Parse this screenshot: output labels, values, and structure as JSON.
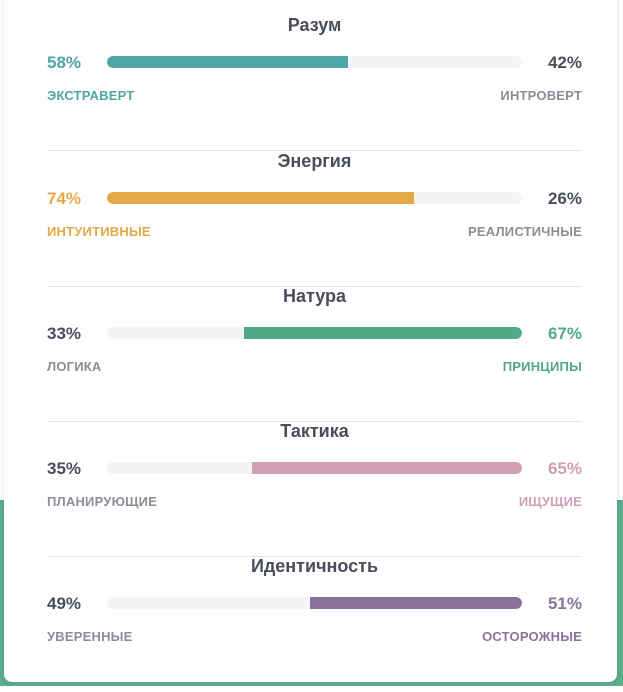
{
  "scales": [
    {
      "title": "Разум",
      "left_pct": "58%",
      "right_pct": "42%",
      "left_label": "ЭКСТРАВЕРТ",
      "right_label": "ИНТРОВЕРТ",
      "value": 58,
      "dominant": "left",
      "color": "#4fa6a6"
    },
    {
      "title": "Энергия",
      "left_pct": "74%",
      "right_pct": "26%",
      "left_label": "ИНТУИТИВНЫЕ",
      "right_label": "РЕАЛИСТИЧНЫЕ",
      "value": 74,
      "dominant": "left",
      "color": "#e3a945"
    },
    {
      "title": "Натура",
      "left_pct": "33%",
      "right_pct": "67%",
      "left_label": "ЛОГИКА",
      "right_label": "ПРИНЦИПЫ",
      "value": 67,
      "dominant": "right",
      "color": "#52a985"
    },
    {
      "title": "Тактика",
      "left_pct": "35%",
      "right_pct": "65%",
      "left_label": "ПЛАНИРУЮЩИЕ",
      "right_label": "ИЩУЩИЕ",
      "value": 65,
      "dominant": "right",
      "color": "#cf9db4"
    },
    {
      "title": "Идентичность",
      "left_pct": "49%",
      "right_pct": "51%",
      "left_label": "УВЕРЕННЫЕ",
      "right_label": "ОСТОРОЖНЫЕ",
      "value": 51,
      "dominant": "right",
      "color": "#8c7198"
    }
  ],
  "colors": {
    "neutral_text": "#4a4e5a",
    "muted_label": "#8a8e95",
    "background_band": "#5aaf8e"
  }
}
